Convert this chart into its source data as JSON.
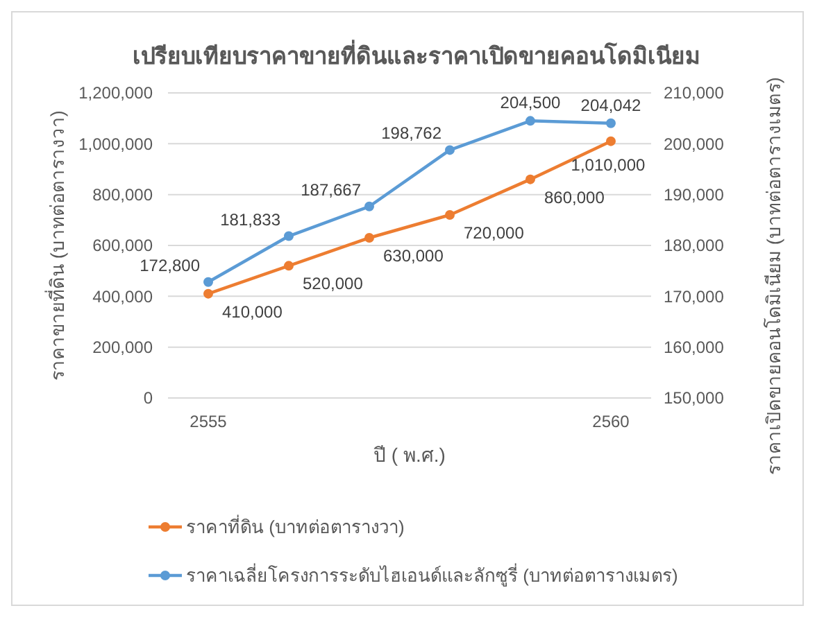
{
  "chart_data": {
    "type": "line",
    "title": "เปรียบเทียบราคาขายที่ดินและราคาเปิดขายคอนโดมิเนียม",
    "xlabel": "ปี ( พ.ศ.)",
    "ylabel": "ราคาขายที่ดิน (บาทต่อตารางวา)",
    "y2label": "ราคาเปิดขายคอนโดมิเนียม (บาทต่อตารางเมตร)",
    "categories": [
      "2555",
      null,
      null,
      null,
      null,
      "2560"
    ],
    "series": [
      {
        "name": "ราคาที่ดิน (บาทต่อตารางวา)",
        "color": "#ed7d31",
        "values": [
          410000,
          520000,
          630000,
          720000,
          860000,
          1010000
        ],
        "value_labels": [
          "410,000",
          "520,000",
          "630,000",
          "720,000",
          "860,000",
          "1,010,000"
        ]
      },
      {
        "name": "ราคาเฉลี่ยโครงการระดับไฮเอนด์และลักซูรี่ (บาทต่อตารางเมตร)",
        "color": "#5b9bd5",
        "axis": "y2",
        "values": [
          172800,
          181833,
          187667,
          198762,
          204500,
          204042
        ],
        "value_labels": [
          "172,800",
          "181,833",
          "187,667",
          "198,762",
          "204,500",
          "204,042"
        ]
      }
    ],
    "ylim": [
      0,
      1200000
    ],
    "yticks": [
      {
        "value": 0,
        "label": "0"
      },
      {
        "value": 200000,
        "label": "200,000"
      },
      {
        "value": 400000,
        "label": "400,000"
      },
      {
        "value": 600000,
        "label": "600,000"
      },
      {
        "value": 800000,
        "label": "800,000"
      },
      {
        "value": 1000000,
        "label": "1,000,000"
      },
      {
        "value": 1200000,
        "label": "1,200,000"
      }
    ],
    "y2lim": [
      150000,
      210000
    ],
    "y2ticks": [
      {
        "value": 150000,
        "label": "150,000"
      },
      {
        "value": 160000,
        "label": "160,000"
      },
      {
        "value": 170000,
        "label": "170,000"
      },
      {
        "value": 180000,
        "label": "180,000"
      },
      {
        "value": 190000,
        "label": "190,000"
      },
      {
        "value": 200000,
        "label": "200,000"
      },
      {
        "value": 210000,
        "label": "210,000"
      }
    ],
    "grid": "y",
    "legend": "bottom",
    "marker": "circle",
    "line_style": "solid"
  }
}
